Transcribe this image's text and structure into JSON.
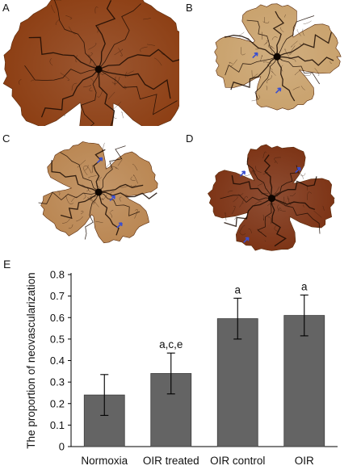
{
  "panels": [
    {
      "letter": "A",
      "tone": "#8a3a0e",
      "arrows": []
    },
    {
      "letter": "B",
      "tone": "#c8a06a",
      "arrows": [
        [
          0.42,
          0.42
        ],
        [
          0.55,
          0.7
        ]
      ]
    },
    {
      "letter": "C",
      "tone": "#b98550",
      "arrows": [
        [
          0.57,
          0.22
        ],
        [
          0.64,
          0.53
        ],
        [
          0.68,
          0.75
        ]
      ]
    },
    {
      "letter": "D",
      "tone": "#7a2f10",
      "arrows": [
        [
          0.35,
          0.33
        ],
        [
          0.66,
          0.3
        ],
        [
          0.37,
          0.87
        ]
      ]
    }
  ],
  "chart_data": {
    "type": "bar",
    "panel_letter": "E",
    "categories": [
      "Normoxia",
      "OIR treated",
      "OIR control",
      "OIR"
    ],
    "values": [
      0.24,
      0.34,
      0.595,
      0.61
    ],
    "errors": [
      0.095,
      0.095,
      0.095,
      0.095
    ],
    "annotations": [
      "",
      "a,c,e",
      "a",
      "a"
    ],
    "ylabel": "The proportion of neovascularization",
    "xlabel": "",
    "ylim": [
      0,
      0.8
    ],
    "yticks": [
      "0",
      "0.1",
      "0.2",
      "0.3",
      "0.4",
      "0.5",
      "0.6",
      "0.7",
      "0.8"
    ],
    "grid": false,
    "bar_color": "#646464"
  }
}
